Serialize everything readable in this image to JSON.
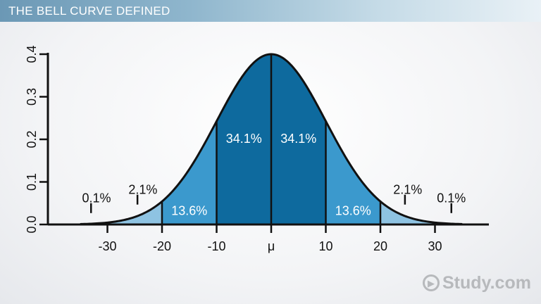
{
  "header": {
    "title": "THE BELL CURVE DEFINED"
  },
  "brand": {
    "logo_text": "Study.com"
  },
  "colors": {
    "inner": "#0e6a9e",
    "middle": "#3b99cd",
    "tail": "#8ec3e2",
    "axis": "#111111",
    "title_bar": "#7aa5c0"
  },
  "chart_data": {
    "type": "area",
    "title": "",
    "xlabel": "",
    "ylabel": "",
    "mean": 0,
    "sd": 10,
    "xlim": [
      -40,
      40
    ],
    "ylim": [
      0,
      0.4
    ],
    "x_ticks": [
      {
        "value": -30,
        "label": "-30"
      },
      {
        "value": -20,
        "label": "-20"
      },
      {
        "value": -10,
        "label": "-10"
      },
      {
        "value": 0,
        "label": "μ"
      },
      {
        "value": 10,
        "label": "10"
      },
      {
        "value": 20,
        "label": "20"
      },
      {
        "value": 30,
        "label": "30"
      }
    ],
    "y_ticks": [
      {
        "value": 0.0,
        "label": "0.0"
      },
      {
        "value": 0.1,
        "label": "0.1"
      },
      {
        "value": 0.2,
        "label": "0.2"
      },
      {
        "value": 0.3,
        "label": "0.3"
      },
      {
        "value": 0.4,
        "label": "0.4"
      }
    ],
    "regions": [
      {
        "from": -33,
        "to": -20,
        "band": "tail"
      },
      {
        "from": -20,
        "to": -10,
        "band": "middle"
      },
      {
        "from": -10,
        "to": 0,
        "band": "inner"
      },
      {
        "from": 0,
        "to": 10,
        "band": "inner"
      },
      {
        "from": 10,
        "to": 20,
        "band": "middle"
      },
      {
        "from": 20,
        "to": 33,
        "band": "tail"
      }
    ],
    "dividers": [
      -20,
      -10,
      0,
      10,
      20
    ],
    "annotations": [
      {
        "label": "34.1%",
        "x": -5,
        "y": 0.2,
        "color": "#ffffff",
        "anchor": "middle"
      },
      {
        "label": "34.1%",
        "x": 5,
        "y": 0.2,
        "color": "#ffffff",
        "anchor": "middle"
      },
      {
        "label": "13.6%",
        "x": -15,
        "y": 0.03,
        "color": "#ffffff",
        "anchor": "middle"
      },
      {
        "label": "13.6%",
        "x": 15,
        "y": 0.03,
        "color": "#ffffff",
        "anchor": "middle"
      },
      {
        "label": "2.1%",
        "x": -23.5,
        "y": 0.06,
        "color": "#111111",
        "anchor": "middle",
        "marker_x": -24.5
      },
      {
        "label": "2.1%",
        "x": 25,
        "y": 0.06,
        "color": "#111111",
        "anchor": "middle",
        "marker_x": 24.5
      },
      {
        "label": "0.1%",
        "x": -32,
        "y": 0.04,
        "color": "#111111",
        "anchor": "middle",
        "marker_x": -33
      },
      {
        "label": "0.1%",
        "x": 33,
        "y": 0.04,
        "color": "#111111",
        "anchor": "middle",
        "marker_x": 33
      }
    ]
  }
}
